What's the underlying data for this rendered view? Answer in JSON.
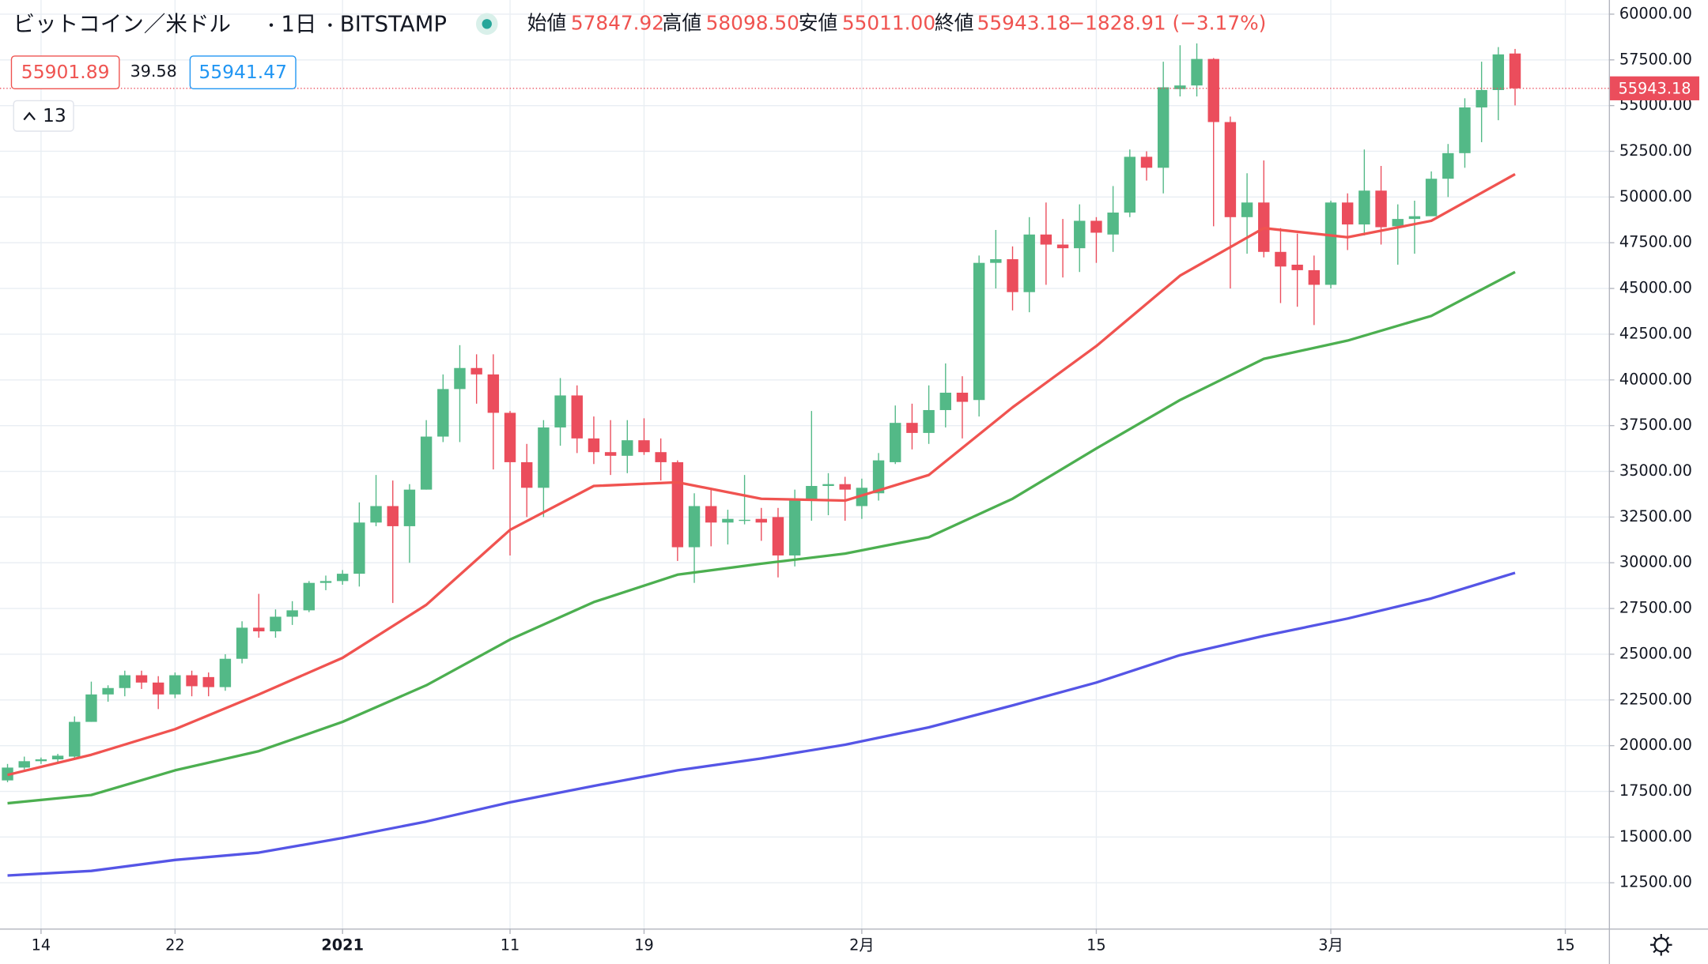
{
  "chart_data": {
    "type": "candlestick",
    "header": {
      "symbol": "ビットコイン／米ドル",
      "interval": "1日",
      "exchange": "BITSTAMP",
      "open_label": "始値",
      "open": "57847.92",
      "high_label": "高値",
      "high": "58098.50",
      "low_label": "安値",
      "low": "55011.00",
      "close_label": "終値",
      "close": "55943.18",
      "change": "−1828.91 (−3.17%)"
    },
    "bid": "55901.89",
    "spread": "39.58",
    "ask": "55941.47",
    "indicator_count": "13",
    "last_price_label": "55943.18",
    "up_color": "#53b987",
    "down_color": "#eb4d5c",
    "open": [
      18100,
      18800,
      19150,
      19250,
      19400,
      21300,
      22800,
      23150,
      23850,
      23450,
      22800,
      23850,
      23750,
      23200,
      24750,
      26450,
      26250,
      27050,
      27400,
      28900,
      29000,
      29400,
      32200,
      33100,
      32000,
      34000,
      36900,
      39500,
      40650,
      40300,
      38200,
      35500,
      34100,
      37400,
      39150,
      36800,
      36050,
      35850,
      36700,
      36050,
      35500,
      30850,
      33100,
      32200,
      32300,
      32400,
      32500,
      30400,
      33400,
      34200,
      34300,
      33100,
      33800,
      35500,
      37650,
      37100,
      38350,
      39300,
      38900,
      46400,
      46600,
      44800,
      47950,
      47400,
      47200,
      48700,
      47950,
      49150,
      52200,
      51600,
      55900,
      56100,
      57550,
      54100,
      48900,
      49700,
      47000,
      46300,
      46000,
      45200,
      49700,
      48500,
      50350,
      48400,
      48800,
      48950,
      51000,
      52400,
      54900,
      55850,
      57847.92
    ],
    "high": [
      19000,
      19400,
      19350,
      19550,
      21600,
      23500,
      23300,
      24100,
      24100,
      23800,
      24000,
      24100,
      24000,
      25000,
      26800,
      28300,
      27450,
      27900,
      29000,
      29300,
      29600,
      33300,
      34800,
      34500,
      34300,
      37800,
      40300,
      41900,
      41400,
      41400,
      38300,
      36500,
      37800,
      40100,
      39700,
      38000,
      37800,
      37800,
      37900,
      36800,
      35600,
      33800,
      34000,
      32900,
      34800,
      33000,
      33000,
      34000,
      38300,
      34900,
      34700,
      34600,
      36000,
      38600,
      38700,
      39700,
      40900,
      40200,
      46800,
      48200,
      47300,
      48900,
      49700,
      48800,
      49600,
      48900,
      50600,
      52600,
      52500,
      57400,
      58300,
      58400,
      57600,
      54400,
      51300,
      52000,
      48300,
      48000,
      46800,
      49800,
      50200,
      52600,
      51700,
      49600,
      49800,
      51400,
      52900,
      55400,
      57400,
      58200,
      58098.5
    ],
    "low": [
      18000,
      18700,
      19000,
      19050,
      19300,
      21300,
      22400,
      22700,
      23100,
      22000,
      22600,
      22700,
      22700,
      23000,
      24500,
      25900,
      25900,
      26600,
      27300,
      28500,
      28800,
      28700,
      32000,
      27800,
      30000,
      34000,
      36600,
      36600,
      38700,
      35100,
      30400,
      32500,
      32500,
      36400,
      36000,
      35400,
      34800,
      34900,
      35900,
      34500,
      30100,
      28900,
      30900,
      31000,
      32100,
      31200,
      29200,
      29800,
      32300,
      32600,
      32300,
      32400,
      33400,
      35400,
      36200,
      36500,
      37400,
      36800,
      38000,
      45000,
      43800,
      43700,
      45200,
      45600,
      45900,
      46400,
      47000,
      48900,
      50900,
      50200,
      55500,
      55500,
      48400,
      45000,
      46900,
      46700,
      44200,
      44000,
      43000,
      45000,
      47100,
      47900,
      47400,
      46300,
      46900,
      49000,
      50000,
      51600,
      53000,
      54200,
      55011
    ],
    "close": [
      18800,
      19150,
      19250,
      19450,
      21300,
      22800,
      23150,
      23850,
      23450,
      22800,
      23850,
      23250,
      23200,
      24750,
      26450,
      26250,
      27050,
      27400,
      28900,
      29000,
      29400,
      32200,
      33100,
      32000,
      34000,
      36900,
      39500,
      40650,
      40300,
      38200,
      35500,
      34100,
      37400,
      39150,
      36800,
      36050,
      35850,
      36700,
      36050,
      35500,
      30850,
      33100,
      32200,
      32400,
      32350,
      32200,
      30400,
      33400,
      34200,
      34300,
      34000,
      34100,
      35600,
      37650,
      37100,
      38350,
      39300,
      38800,
      46400,
      46600,
      44800,
      47950,
      47400,
      47200,
      48700,
      48050,
      49150,
      52200,
      51600,
      56000,
      56100,
      57550,
      54100,
      48900,
      49700,
      47000,
      46200,
      46000,
      45200,
      49700,
      48500,
      50350,
      48350,
      48800,
      48950,
      51000,
      52400,
      54900,
      55850,
      57800,
      55943.18
    ],
    "moving_averages": [
      {
        "color": "#f05350",
        "x": [
          0,
          5,
          10,
          15,
          20,
          25,
          30,
          35,
          40,
          45,
          50,
          55,
          60,
          65,
          70,
          75,
          80,
          85,
          90
        ],
        "values": [
          18400,
          19500,
          20900,
          22800,
          24800,
          27700,
          31800,
          34200,
          34400,
          33500,
          33400,
          34800,
          38500,
          41850,
          45700,
          48300,
          47800,
          48700,
          51250
        ]
      },
      {
        "color": "#4caf50",
        "x": [
          0,
          5,
          10,
          15,
          20,
          25,
          30,
          35,
          40,
          45,
          50,
          55,
          60,
          65,
          70,
          75,
          80,
          85,
          90
        ],
        "values": [
          16850,
          17300,
          18650,
          19700,
          21300,
          23300,
          25800,
          27850,
          29350,
          29950,
          30500,
          31400,
          33500,
          36250,
          38900,
          41150,
          42150,
          43500,
          45900
        ]
      },
      {
        "color": "#5555e6",
        "x": [
          0,
          5,
          10,
          15,
          20,
          25,
          30,
          35,
          40,
          45,
          50,
          55,
          60,
          65,
          70,
          75,
          80,
          85,
          90
        ],
        "values": [
          12900,
          13150,
          13750,
          14150,
          14950,
          15850,
          16900,
          17800,
          18650,
          19300,
          20050,
          21000,
          22200,
          23450,
          24950,
          26000,
          26950,
          28050,
          29450
        ]
      }
    ],
    "xlim": [
      -0.45,
      95.6
    ],
    "xticks": [
      {
        "value": 2,
        "label": "14"
      },
      {
        "value": 10,
        "label": "22"
      },
      {
        "value": 20,
        "label": "2021"
      },
      {
        "value": 30,
        "label": "11"
      },
      {
        "value": 38,
        "label": "19"
      },
      {
        "value": 51,
        "label": "2月"
      },
      {
        "value": 65,
        "label": "15"
      },
      {
        "value": 79,
        "label": "3月"
      },
      {
        "value": 93,
        "label": "15"
      }
    ],
    "ylim": [
      10000,
      60774
    ],
    "yticks": [
      {
        "value": 12500,
        "label": "12500.00"
      },
      {
        "value": 15000,
        "label": "15000.00"
      },
      {
        "value": 17500,
        "label": "17500.00"
      },
      {
        "value": 20000,
        "label": "20000.00"
      },
      {
        "value": 22500,
        "label": "22500.00"
      },
      {
        "value": 25000,
        "label": "25000.00"
      },
      {
        "value": 27500,
        "label": "27500.00"
      },
      {
        "value": 30000,
        "label": "30000.00"
      },
      {
        "value": 32500,
        "label": "32500.00"
      },
      {
        "value": 35000,
        "label": "35000.00"
      },
      {
        "value": 37500,
        "label": "37500.00"
      },
      {
        "value": 40000,
        "label": "40000.00"
      },
      {
        "value": 42500,
        "label": "42500.00"
      },
      {
        "value": 45000,
        "label": "45000.00"
      },
      {
        "value": 47500,
        "label": "47500.00"
      },
      {
        "value": 50000,
        "label": "50000.00"
      },
      {
        "value": 52500,
        "label": "52500.00"
      },
      {
        "value": 55000,
        "label": "55000.00"
      },
      {
        "value": 57500,
        "label": "57500.00"
      },
      {
        "value": 60000,
        "label": "60000.00"
      }
    ],
    "grid": true
  }
}
